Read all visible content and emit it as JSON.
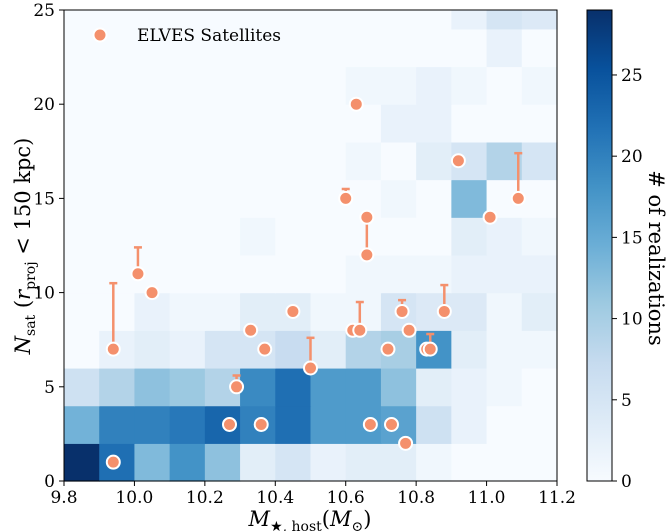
{
  "chart_data": {
    "type": "heatmap",
    "legend": {
      "label": "ELVES Satellites",
      "position": "top-left"
    },
    "xlabel": "M_{★,host}(M_⊙)",
    "ylabel": "N_sat(r_proj < 150 kpc)",
    "xlim": [
      9.8,
      11.2
    ],
    "ylim": [
      0,
      25
    ],
    "x_ticks": [
      "9.8",
      "10.0",
      "10.2",
      "10.4",
      "10.6",
      "10.8",
      "11.0",
      "11.2"
    ],
    "y_ticks": [
      "0",
      "5",
      "10",
      "15",
      "20",
      "25"
    ],
    "colorbar": {
      "label": "# of realizations",
      "range": [
        0,
        29
      ],
      "ticks": [
        "0",
        "5",
        "10",
        "15",
        "20",
        "25"
      ],
      "colormap": [
        "#f7fbff",
        "#deebf7",
        "#c6dbef",
        "#9ecae1",
        "#6baed6",
        "#4292c6",
        "#2171b5",
        "#08519c",
        "#08306b"
      ]
    },
    "heatmap": {
      "x_edges": [
        9.8,
        9.9,
        10.0,
        10.1,
        10.2,
        10.3,
        10.4,
        10.5,
        10.6,
        10.7,
        10.8,
        10.9,
        11.0,
        11.1,
        11.2
      ],
      "y_edges": [
        0,
        2,
        4,
        6,
        8,
        10,
        12,
        14,
        16,
        18,
        20,
        22,
        24,
        26
      ],
      "counts": [
        [
          29,
          22,
          13,
          18,
          12,
          3,
          5,
          2,
          3,
          3,
          1,
          0,
          0,
          0
        ],
        [
          14,
          20,
          20,
          21,
          23,
          20,
          22,
          17,
          17,
          16,
          6,
          2,
          0,
          0
        ],
        [
          6,
          9,
          12,
          11,
          9,
          19,
          22,
          17,
          17,
          12,
          3,
          2,
          1,
          0
        ],
        [
          0,
          2,
          3,
          2,
          5,
          5,
          7,
          3,
          9,
          10,
          18,
          3,
          1,
          1
        ],
        [
          0,
          0,
          2,
          1,
          1,
          3,
          3,
          1,
          1,
          5,
          4,
          4,
          1,
          3
        ],
        [
          0,
          0,
          0,
          0,
          0,
          0,
          0,
          0,
          1,
          1,
          1,
          2,
          2,
          2
        ],
        [
          0,
          0,
          0,
          0,
          0,
          1,
          0,
          0,
          0,
          0,
          0,
          3,
          2,
          1
        ],
        [
          0,
          0,
          0,
          0,
          0,
          0,
          0,
          0,
          0,
          1,
          0,
          13,
          0,
          0
        ],
        [
          0,
          0,
          0,
          0,
          0,
          0,
          0,
          0,
          1,
          0,
          3,
          5,
          9,
          5
        ],
        [
          0,
          0,
          0,
          0,
          0,
          0,
          0,
          0,
          0,
          2,
          2,
          0,
          0,
          0
        ],
        [
          0,
          0,
          0,
          0,
          0,
          0,
          0,
          0,
          1,
          1,
          2,
          1,
          0,
          1
        ],
        [
          0,
          0,
          0,
          0,
          0,
          0,
          0,
          0,
          0,
          0,
          0,
          0,
          2,
          0
        ],
        [
          0,
          0,
          0,
          0,
          0,
          0,
          0,
          0,
          0,
          0,
          0,
          0,
          0,
          0
        ]
      ],
      "top_band_counts": [
        0,
        0,
        0,
        0,
        0,
        0,
        0,
        0,
        0,
        0,
        0,
        2,
        5,
        4
      ]
    },
    "series": [
      {
        "name": "ELVES Satellites",
        "color": "#f4906c",
        "points": [
          {
            "x": 9.94,
            "y": 1
          },
          {
            "x": 9.94,
            "y": 7,
            "err_to": 10.5
          },
          {
            "x": 10.01,
            "y": 11,
            "err_to": 12.4
          },
          {
            "x": 10.05,
            "y": 10
          },
          {
            "x": 10.27,
            "y": 3
          },
          {
            "x": 10.29,
            "y": 5,
            "err_to": 5.6
          },
          {
            "x": 10.33,
            "y": 8
          },
          {
            "x": 10.36,
            "y": 3
          },
          {
            "x": 10.37,
            "y": 7
          },
          {
            "x": 10.45,
            "y": 9
          },
          {
            "x": 10.5,
            "y": 6,
            "err_to": 7.6
          },
          {
            "x": 10.6,
            "y": 15,
            "err_to": 15.5
          },
          {
            "x": 10.62,
            "y": 8
          },
          {
            "x": 10.63,
            "y": 20
          },
          {
            "x": 10.64,
            "y": 8,
            "err_to": 9.5
          },
          {
            "x": 10.66,
            "y": 12,
            "err_to": 14
          },
          {
            "x": 10.66,
            "y": 14
          },
          {
            "x": 10.67,
            "y": 3
          },
          {
            "x": 10.72,
            "y": 7
          },
          {
            "x": 10.73,
            "y": 3
          },
          {
            "x": 10.76,
            "y": 9,
            "err_to": 9.6
          },
          {
            "x": 10.77,
            "y": 2
          },
          {
            "x": 10.78,
            "y": 8
          },
          {
            "x": 10.83,
            "y": 7
          },
          {
            "x": 10.84,
            "y": 7,
            "err_to": 7.8
          },
          {
            "x": 10.88,
            "y": 9,
            "err_to": 10.4
          },
          {
            "x": 10.92,
            "y": 17
          },
          {
            "x": 11.01,
            "y": 14
          },
          {
            "x": 11.09,
            "y": 15,
            "err_to": 17.4
          }
        ]
      }
    ]
  }
}
